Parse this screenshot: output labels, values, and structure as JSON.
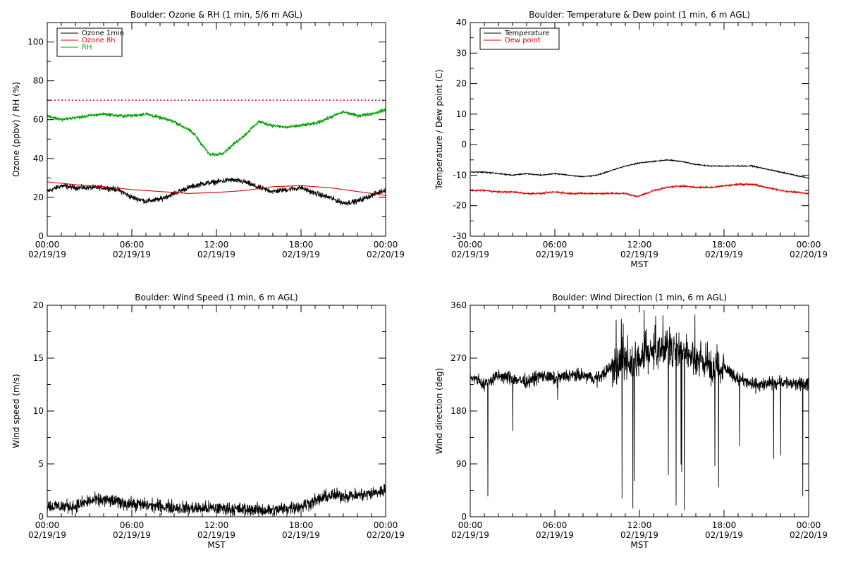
{
  "colors": {
    "black": "#000000",
    "red": "#dd0000",
    "green": "#00a000"
  },
  "chart_data": [
    {
      "type": "line",
      "title": "Boulder: Ozone & RH (1 min, 5/6 m AGL)",
      "ylabel": "Ozone (ppbv) / RH (%)",
      "xlabel": "",
      "xlim": [
        0,
        24
      ],
      "ylim": [
        0,
        110
      ],
      "yticks": [
        0,
        20,
        40,
        60,
        80,
        100
      ],
      "xticks": [
        0,
        6,
        12,
        18,
        24
      ],
      "xticklabels": [
        [
          "00:00",
          "02/19/19"
        ],
        [
          "06:00",
          "02/19/19"
        ],
        [
          "12:00",
          "02/19/19"
        ],
        [
          "18:00",
          "02/19/19"
        ],
        [
          "00:00",
          "02/20/19"
        ]
      ],
      "legend": "top-left",
      "reference_line": {
        "y": 70,
        "style": "dotted",
        "color": "#dd0000"
      },
      "series": [
        {
          "name": "Ozone 1min",
          "color": "#000000",
          "noise": 1.2,
          "x": [
            0,
            1,
            2,
            3,
            4,
            5,
            6,
            7,
            8,
            9,
            10,
            11,
            12,
            13,
            14,
            15,
            16,
            17,
            18,
            19,
            20,
            21,
            22,
            23,
            24
          ],
          "y": [
            23,
            26,
            25,
            25,
            25,
            24,
            20,
            18,
            19,
            22,
            25,
            27,
            28,
            29,
            28,
            25,
            23,
            24,
            25,
            22,
            20,
            17,
            18,
            21,
            24
          ]
        },
        {
          "name": "Ozone 8h",
          "color": "#dd0000",
          "noise": 0,
          "x": [
            0,
            2,
            4,
            6,
            8,
            10,
            12,
            14,
            16,
            18,
            20,
            22,
            24
          ],
          "y": [
            28,
            26.5,
            25.5,
            24,
            23,
            22,
            22.5,
            23.5,
            25.5,
            26,
            25,
            23,
            21
          ]
        },
        {
          "name": "RH",
          "color": "#00a000",
          "noise": 0.8,
          "x": [
            0,
            1,
            2,
            3,
            4,
            5,
            6,
            7,
            8,
            9,
            10,
            10.5,
            11,
            11.5,
            12,
            12.5,
            13,
            14,
            15,
            16,
            17,
            18,
            19,
            20,
            21,
            22,
            23,
            24
          ],
          "y": [
            62,
            60,
            61,
            62,
            63,
            62,
            62,
            63,
            61,
            59,
            55,
            52,
            47,
            42,
            42,
            43,
            46,
            52,
            59,
            57,
            56,
            57,
            58,
            61,
            64,
            62,
            63,
            65
          ]
        }
      ]
    },
    {
      "type": "line",
      "title": "Boulder: Temperature & Dew point (1 min, 6 m AGL)",
      "ylabel": "Temperature / Dew point (C)",
      "xlabel": "MST",
      "xlim": [
        0,
        24
      ],
      "ylim": [
        -30,
        40
      ],
      "yticks": [
        -30,
        -20,
        -10,
        0,
        10,
        20,
        30,
        40
      ],
      "xticks": [
        0,
        6,
        12,
        18,
        24
      ],
      "xticklabels": [
        [
          "00:00",
          "02/19/19"
        ],
        [
          "06:00",
          "02/19/19"
        ],
        [
          "12:00",
          "02/19/19"
        ],
        [
          "18:00",
          "02/19/19"
        ],
        [
          "00:00",
          "02/20/19"
        ]
      ],
      "legend": "top-left",
      "series": [
        {
          "name": "Temperature",
          "color": "#000000",
          "noise": 0.15,
          "x": [
            0,
            1,
            2,
            3,
            4,
            5,
            6,
            7,
            8,
            9,
            10,
            11,
            12,
            13,
            14,
            15,
            16,
            17,
            18,
            19,
            20,
            21,
            22,
            23,
            24
          ],
          "y": [
            -9,
            -9,
            -9.5,
            -10,
            -9.5,
            -10,
            -9.5,
            -10,
            -10.5,
            -10,
            -8.5,
            -7,
            -6,
            -5.5,
            -5,
            -5.5,
            -6.5,
            -7,
            -7,
            -7,
            -7,
            -8,
            -9,
            -10,
            -11
          ]
        },
        {
          "name": "Dew point",
          "color": "#dd0000",
          "noise": 0.25,
          "x": [
            0,
            1,
            2,
            3,
            4,
            5,
            6,
            7,
            8,
            9,
            10,
            11,
            11.8,
            12.5,
            13,
            14,
            15,
            16,
            17,
            18,
            19,
            20,
            21,
            22,
            23,
            24
          ],
          "y": [
            -15,
            -15,
            -15.5,
            -15.5,
            -16,
            -16,
            -15.5,
            -16,
            -16,
            -16,
            -16,
            -16,
            -17,
            -16,
            -15,
            -14,
            -13.5,
            -14,
            -14,
            -13.5,
            -13,
            -13,
            -14,
            -15,
            -15.5,
            -16
          ]
        }
      ]
    },
    {
      "type": "line",
      "title": "Boulder: Wind Speed (1 min, 6 m AGL)",
      "ylabel": "Wind speed (m/s)",
      "xlabel": "MST",
      "xlim": [
        0,
        24
      ],
      "ylim": [
        0,
        20
      ],
      "yticks": [
        0,
        5,
        10,
        15,
        20
      ],
      "xticks": [
        0,
        6,
        12,
        18,
        24
      ],
      "xticklabels": [
        [
          "00:00",
          "02/19/19"
        ],
        [
          "06:00",
          "02/19/19"
        ],
        [
          "12:00",
          "02/19/19"
        ],
        [
          "18:00",
          "02/19/19"
        ],
        [
          "00:00",
          "02/20/19"
        ]
      ],
      "legend": "none",
      "series": [
        {
          "name": "",
          "color": "#000000",
          "noise": 0.55,
          "x": [
            0,
            2,
            3,
            4,
            6,
            8,
            10,
            12,
            14,
            16,
            17,
            18,
            19,
            20,
            21,
            22,
            23,
            24
          ],
          "y": [
            1,
            1,
            1.5,
            1.6,
            1.2,
            1,
            0.8,
            0.8,
            0.7,
            0.6,
            0.8,
            1,
            1.5,
            2,
            2,
            2,
            2.2,
            2.5
          ]
        }
      ]
    },
    {
      "type": "line",
      "title": "Boulder: Wind Direction (1 min, 6 m AGL)",
      "ylabel": "Wind direction (deg)",
      "xlabel": "MST",
      "xlim": [
        0,
        24
      ],
      "ylim": [
        0,
        360
      ],
      "yticks": [
        0,
        90,
        180,
        270,
        360
      ],
      "xticks": [
        0,
        6,
        12,
        18,
        24
      ],
      "xticklabels": [
        [
          "00:00",
          "02/19/19"
        ],
        [
          "06:00",
          "02/19/19"
        ],
        [
          "12:00",
          "02/19/19"
        ],
        [
          "18:00",
          "02/19/19"
        ],
        [
          "00:00",
          "02/20/19"
        ]
      ],
      "legend": "none",
      "series": [
        {
          "name": "",
          "color": "#000000",
          "noise": 10,
          "x": [
            0,
            1,
            2,
            3,
            4,
            5,
            6,
            7,
            8,
            9,
            10,
            11,
            12,
            13,
            14,
            15,
            16,
            17,
            18,
            19,
            20,
            21,
            22,
            23,
            24
          ],
          "y": [
            240,
            225,
            240,
            235,
            230,
            240,
            235,
            240,
            240,
            235,
            255,
            260,
            270,
            280,
            290,
            285,
            270,
            260,
            255,
            235,
            225,
            225,
            230,
            225,
            225
          ]
        }
      ]
    }
  ]
}
